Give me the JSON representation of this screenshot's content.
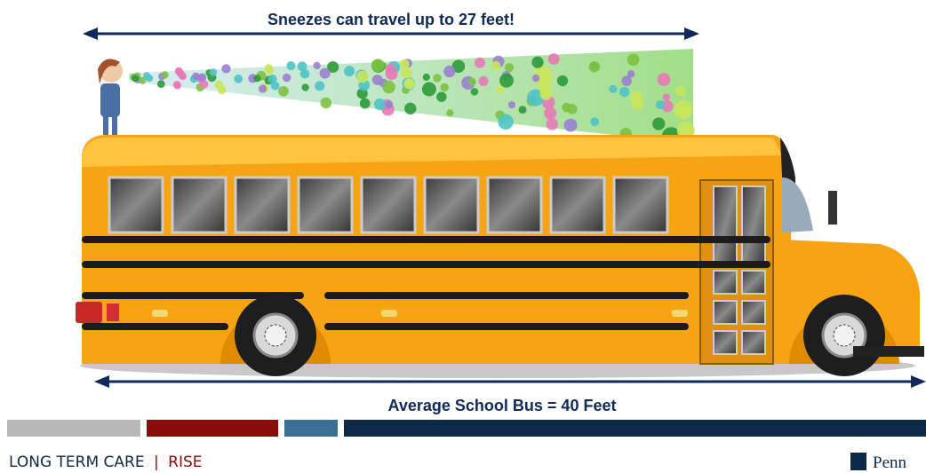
{
  "top_label": "Sneezes can travel up to 27 feet!",
  "bottom_label": "Average School Bus = 40 Feet",
  "footer": {
    "left": "LONG TERM CARE",
    "separator": "|",
    "right": "RISE",
    "logo": "Penn"
  }
}
